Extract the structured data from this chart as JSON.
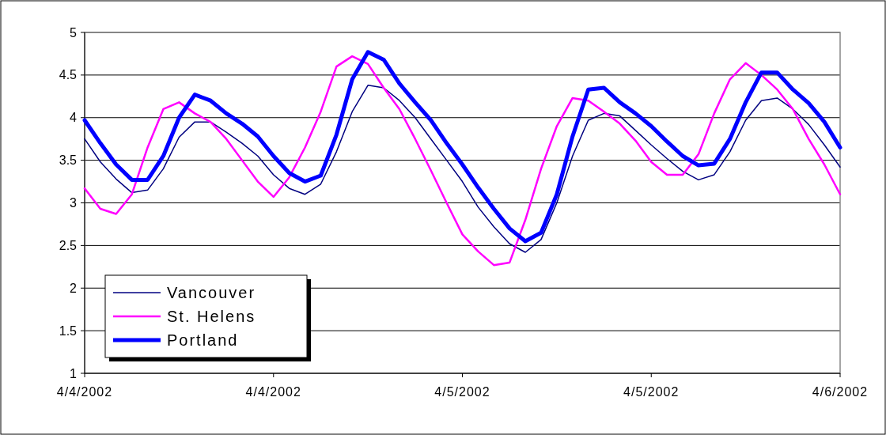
{
  "chart_data": {
    "type": "line",
    "x": [
      "2002-04-04T00:00",
      "2002-04-04T01:00",
      "2002-04-04T02:00",
      "2002-04-04T03:00",
      "2002-04-04T04:00",
      "2002-04-04T05:00",
      "2002-04-04T06:00",
      "2002-04-04T07:00",
      "2002-04-04T08:00",
      "2002-04-04T09:00",
      "2002-04-04T10:00",
      "2002-04-04T11:00",
      "2002-04-04T12:00",
      "2002-04-04T13:00",
      "2002-04-04T14:00",
      "2002-04-04T15:00",
      "2002-04-04T16:00",
      "2002-04-04T17:00",
      "2002-04-04T18:00",
      "2002-04-04T19:00",
      "2002-04-04T20:00",
      "2002-04-04T21:00",
      "2002-04-04T22:00",
      "2002-04-04T23:00",
      "2002-04-05T00:00",
      "2002-04-05T01:00",
      "2002-04-05T02:00",
      "2002-04-05T03:00",
      "2002-04-05T04:00",
      "2002-04-05T05:00",
      "2002-04-05T06:00",
      "2002-04-05T07:00",
      "2002-04-05T08:00",
      "2002-04-05T09:00",
      "2002-04-05T10:00",
      "2002-04-05T11:00",
      "2002-04-05T12:00",
      "2002-04-05T13:00",
      "2002-04-05T14:00",
      "2002-04-05T15:00",
      "2002-04-05T16:00",
      "2002-04-05T17:00",
      "2002-04-05T18:00",
      "2002-04-05T19:00",
      "2002-04-05T20:00",
      "2002-04-05T21:00",
      "2002-04-05T22:00",
      "2002-04-05T23:00",
      "2002-04-06T00:00"
    ],
    "series": [
      {
        "name": "Vancouver",
        "color": "#000080",
        "values": [
          3.75,
          3.48,
          3.28,
          3.12,
          3.15,
          3.4,
          3.77,
          3.95,
          3.95,
          3.83,
          3.7,
          3.55,
          3.33,
          3.17,
          3.1,
          3.22,
          3.6,
          4.07,
          4.38,
          4.35,
          4.2,
          4.0,
          3.75,
          3.5,
          3.25,
          2.95,
          2.72,
          2.52,
          2.42,
          2.57,
          3.0,
          3.55,
          3.97,
          4.05,
          4.02,
          3.85,
          3.68,
          3.52,
          3.37,
          3.27,
          3.33,
          3.6,
          3.97,
          4.2,
          4.23,
          4.1,
          3.92,
          3.68,
          3.42
        ]
      },
      {
        "name": "St. Helens",
        "color": "#ff00ff",
        "values": [
          3.17,
          2.93,
          2.87,
          3.1,
          3.65,
          4.1,
          4.18,
          4.05,
          3.95,
          3.75,
          3.5,
          3.25,
          3.07,
          3.3,
          3.65,
          4.07,
          4.6,
          4.72,
          4.63,
          4.35,
          4.1,
          3.75,
          3.38,
          3.0,
          2.63,
          2.43,
          2.27,
          2.3,
          2.8,
          3.4,
          3.9,
          4.23,
          4.2,
          4.07,
          3.93,
          3.73,
          3.48,
          3.33,
          3.33,
          3.57,
          4.05,
          4.45,
          4.64,
          4.5,
          4.33,
          4.1,
          3.75,
          3.45,
          3.1
        ]
      },
      {
        "name": "Portland",
        "color": "#0000ff",
        "values": [
          3.97,
          3.7,
          3.45,
          3.27,
          3.27,
          3.55,
          4.0,
          4.27,
          4.2,
          4.05,
          3.93,
          3.78,
          3.55,
          3.35,
          3.25,
          3.32,
          3.8,
          4.45,
          4.77,
          4.68,
          4.4,
          4.18,
          3.97,
          3.7,
          3.45,
          3.18,
          2.93,
          2.7,
          2.55,
          2.65,
          3.1,
          3.78,
          4.33,
          4.35,
          4.18,
          4.05,
          3.9,
          3.72,
          3.55,
          3.44,
          3.46,
          3.75,
          4.18,
          4.53,
          4.53,
          4.33,
          4.17,
          3.95,
          3.65
        ]
      }
    ],
    "xlim": [
      "2002-04-04T00:00",
      "2002-04-06T00:00"
    ],
    "xticks": [
      {
        "value": "2002-04-04T00:00",
        "label": "4/4/2002"
      },
      {
        "value": "2002-04-04T12:00",
        "label": "4/4/2002"
      },
      {
        "value": "2002-04-05T00:00",
        "label": "4/5/2002"
      },
      {
        "value": "2002-04-05T12:00",
        "label": "4/5/2002"
      },
      {
        "value": "2002-04-06T00:00",
        "label": "4/6/2002"
      }
    ],
    "ylim": [
      1,
      5
    ],
    "yticks": [
      1,
      1.5,
      2,
      2.5,
      3,
      3.5,
      4,
      4.5,
      5
    ],
    "grid": "y",
    "legend": "bottom left",
    "marker": "none",
    "line_style": "solid"
  }
}
